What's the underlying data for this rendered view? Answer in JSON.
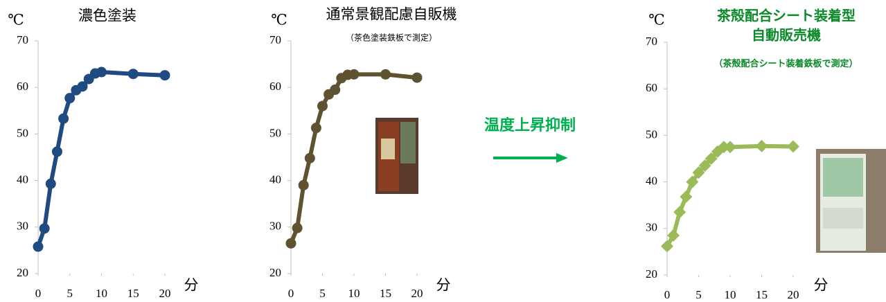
{
  "chart_data": [
    {
      "type": "line",
      "title": "濃色塗装",
      "ylabel": "℃",
      "xlabel": "分",
      "marker": "circle",
      "color": "#1f4b80",
      "x": [
        0,
        1,
        2,
        3,
        4,
        5,
        6,
        7,
        8,
        9,
        10,
        15,
        20
      ],
      "values": [
        25.8,
        29.7,
        39.3,
        46.2,
        53.3,
        57.7,
        59.4,
        60.2,
        61.8,
        63.0,
        63.3,
        62.9,
        62.6
      ],
      "xlim": [
        0,
        20
      ],
      "xticks": [
        0,
        5,
        10,
        15,
        20
      ],
      "ylim": [
        20,
        70
      ],
      "yticks": [
        20,
        30,
        40,
        50,
        60,
        70
      ]
    },
    {
      "type": "line",
      "title": "通常景観配慮自販機",
      "subtitle": "（茶色塗装鉄板で測定）",
      "ylabel": "℃",
      "xlabel": "分",
      "marker": "circle",
      "color": "#5e5231",
      "x": [
        0,
        1,
        2,
        3,
        4,
        5,
        6,
        7,
        8,
        9,
        10,
        15,
        20
      ],
      "values": [
        26.5,
        29.8,
        39.0,
        44.8,
        51.3,
        56.0,
        58.5,
        59.5,
        62.0,
        62.7,
        62.8,
        62.8,
        62.1
      ],
      "xlim": [
        0,
        20
      ],
      "xticks": [
        0,
        5,
        10,
        15,
        20
      ],
      "ylim": [
        20,
        70
      ],
      "yticks": [
        20,
        30,
        40,
        50,
        60,
        70
      ]
    },
    {
      "type": "line",
      "title": [
        "茶殻配合シート装着型",
        "自動販売機"
      ],
      "subtitle": "（茶殻配合シート装着鉄板で測定）",
      "ylabel": "℃",
      "xlabel": "分",
      "marker": "diamond",
      "color": "#9bbb59",
      "x": [
        0,
        1,
        2,
        3,
        4,
        5,
        6,
        7,
        8,
        9,
        10,
        15,
        20
      ],
      "values": [
        26.2,
        28.5,
        33.5,
        36.8,
        40.0,
        42.0,
        43.5,
        45.0,
        46.5,
        47.5,
        47.5,
        47.7,
        47.6
      ],
      "xlim": [
        0,
        20
      ],
      "xticks": [
        0,
        5,
        10,
        15,
        20
      ],
      "ylim": [
        20,
        70
      ],
      "yticks": [
        20,
        30,
        40,
        50,
        60,
        70
      ]
    }
  ],
  "annotation": "温度上昇抑制"
}
